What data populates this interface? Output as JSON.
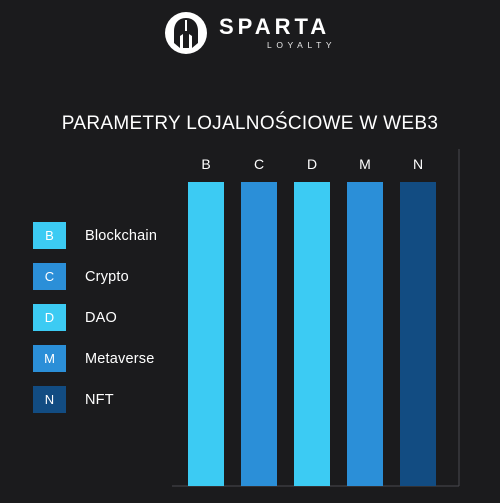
{
  "brand": {
    "name": "SPARTA",
    "tagline": "LOYALTY"
  },
  "chart_data": {
    "type": "bar",
    "title": "PARAMETRY LOJALNOŚCIOWE W WEB3",
    "categories": [
      "B",
      "C",
      "D",
      "M",
      "N"
    ],
    "values": [
      1,
      1,
      1,
      1,
      1
    ],
    "ylim": [
      0,
      1
    ],
    "colors": [
      "#3ccbf3",
      "#2b8fd8",
      "#3ccbf3",
      "#2b8fd8",
      "#124c82"
    ],
    "legend": {
      "placement": "left",
      "items": [
        {
          "key": "B",
          "label": "Blockchain",
          "color": "#3ccbf3"
        },
        {
          "key": "C",
          "label": "Crypto",
          "color": "#2b8fd8"
        },
        {
          "key": "D",
          "label": "DAO",
          "color": "#3ccbf3"
        },
        {
          "key": "M",
          "label": "Metaverse",
          "color": "#2b8fd8"
        },
        {
          "key": "N",
          "label": "NFT",
          "color": "#124c82"
        }
      ]
    },
    "grid": false
  }
}
